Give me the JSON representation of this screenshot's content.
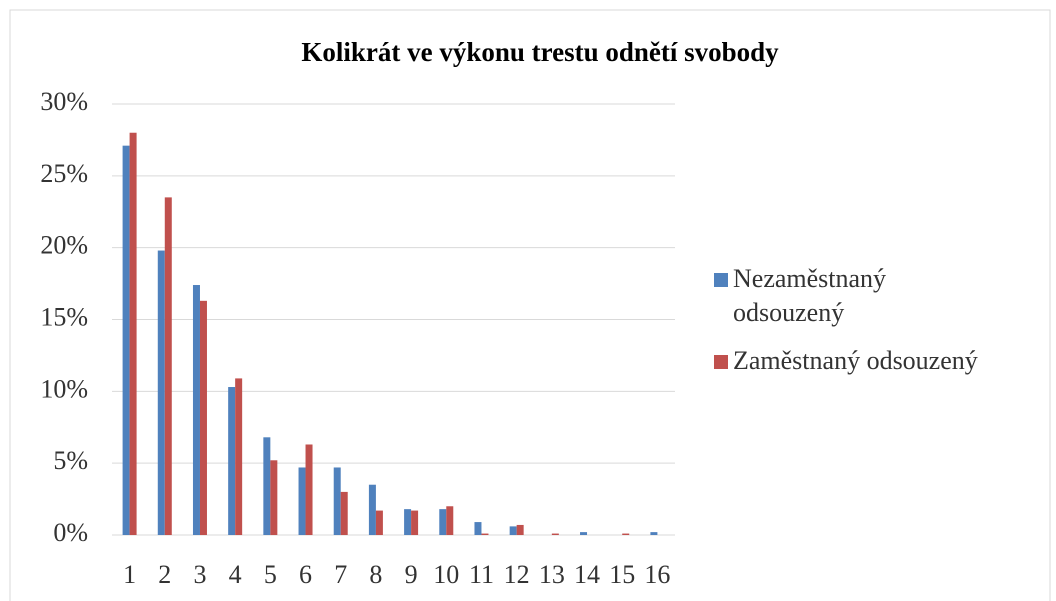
{
  "chart_data": {
    "type": "bar",
    "title": "Kolikrát ve výkonu trestu odnětí svobody",
    "categories": [
      "1",
      "2",
      "3",
      "4",
      "5",
      "6",
      "7",
      "8",
      "9",
      "10",
      "11",
      "12",
      "13",
      "14",
      "15",
      "16"
    ],
    "series": [
      {
        "name": "Nezaměstnaný odsouzený",
        "color": "#4f81bd",
        "values": [
          27.1,
          19.8,
          17.4,
          10.3,
          6.8,
          4.7,
          4.7,
          3.5,
          1.8,
          1.8,
          0.9,
          0.6,
          0,
          0.2,
          0,
          0.2
        ]
      },
      {
        "name": "Zaměstnaný odsouzený",
        "color": "#c0504d",
        "values": [
          28.0,
          23.5,
          16.3,
          10.9,
          5.2,
          6.3,
          3.0,
          1.7,
          1.7,
          2.0,
          0.1,
          0.7,
          0.1,
          0,
          0.1,
          0
        ]
      }
    ],
    "ylim": [
      0,
      30
    ],
    "yticks": [
      {
        "value": 0,
        "label": "0%"
      },
      {
        "value": 5,
        "label": "5%"
      },
      {
        "value": 10,
        "label": "10%"
      },
      {
        "value": 15,
        "label": "15%"
      },
      {
        "value": 20,
        "label": "20%"
      },
      {
        "value": 25,
        "label": "25%"
      },
      {
        "value": 30,
        "label": "30%"
      }
    ],
    "grid": true,
    "legend": "right"
  }
}
